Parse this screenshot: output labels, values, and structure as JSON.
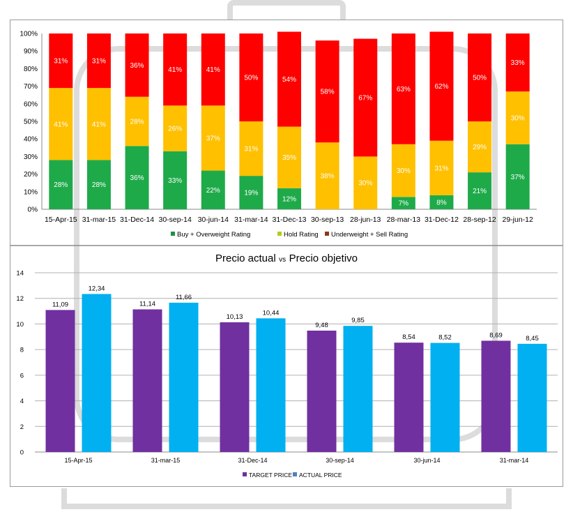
{
  "chart_data": [
    {
      "type": "bar",
      "stacked": true,
      "categories": [
        "15-Apr-15",
        "31-mar-15",
        "31-Dec-14",
        "30-sep-14",
        "30-jun-14",
        "31-mar-14",
        "31-Dec-13",
        "30-sep-13",
        "28-jun-13",
        "28-mar-13",
        "31-Dec-12",
        "28-sep-12",
        "29-jun-12"
      ],
      "series": [
        {
          "name": "Buy + Overweight Rating",
          "color": "#1faa4a",
          "values": [
            28,
            28,
            36,
            33,
            22,
            19,
            12,
            0,
            0,
            7,
            8,
            21,
            37
          ],
          "labels": [
            "28%",
            "28%",
            "36%",
            "33%",
            "22%",
            "19%",
            "12%",
            "",
            "",
            "7%",
            "8%",
            "21%",
            "37%"
          ]
        },
        {
          "name": "Hold Rating",
          "color": "#ffc000",
          "values": [
            41,
            41,
            28,
            26,
            37,
            31,
            35,
            38,
            30,
            30,
            31,
            29,
            30
          ],
          "labels": [
            "41%",
            "41%",
            "28%",
            "26%",
            "37%",
            "31%",
            "35%",
            "38%",
            "30%",
            "30%",
            "31%",
            "29%",
            "30%"
          ]
        },
        {
          "name": "Underweight + Sell Rating",
          "color": "#ff0000",
          "values": [
            31,
            31,
            36,
            41,
            41,
            50,
            54,
            58,
            67,
            63,
            62,
            50,
            33
          ],
          "labels": [
            "31%",
            "31%",
            "36%",
            "41%",
            "41%",
            "50%",
            "54%",
            "58%",
            "67%",
            "63%",
            "62%",
            "50%",
            "33%"
          ]
        }
      ],
      "legend": [
        {
          "name": "Buy + Overweight Rating",
          "color": "#1e8f48"
        },
        {
          "name": "Hold Rating",
          "color": "#b5cc15"
        },
        {
          "name": "Underweight + Sell Rating",
          "color": "#8b3a1c"
        }
      ],
      "yticks": [
        "0%",
        "10%",
        "20%",
        "30%",
        "40%",
        "50%",
        "60%",
        "70%",
        "80%",
        "90%",
        "100%"
      ],
      "ylim": [
        0,
        100
      ],
      "grid": false
    },
    {
      "type": "bar",
      "title_main_a": "Precio actual",
      "title_small": "vs",
      "title_main_b": "Precio objetivo",
      "categories": [
        "15-Apr-15",
        "31-mar-15",
        "31-Dec-14",
        "30-sep-14",
        "30-jun-14",
        "31-mar-14"
      ],
      "series": [
        {
          "name": "TARGET PRICE",
          "color": "#7030a0",
          "values": [
            11.09,
            11.14,
            10.13,
            9.48,
            8.54,
            8.69
          ],
          "labels": [
            "11,09",
            "11,14",
            "10,13",
            "9,48",
            "8,54",
            "8,69"
          ]
        },
        {
          "name": "ACTUAL PRICE",
          "color": "#00b0f0",
          "values": [
            12.34,
            11.66,
            10.44,
            9.85,
            8.52,
            8.45
          ],
          "labels": [
            "12,34",
            "11,66",
            "10,44",
            "9,85",
            "8,52",
            "8,45"
          ]
        }
      ],
      "legend": [
        {
          "name": "TARGET PRICE",
          "color": "#7030a0"
        },
        {
          "name": "ACTUAL PRICE",
          "color": "#4f81bd"
        }
      ],
      "yticks": [
        "0",
        "2",
        "4",
        "6",
        "8",
        "10",
        "12",
        "14"
      ],
      "ylim": [
        0,
        14
      ],
      "grid": true
    }
  ]
}
